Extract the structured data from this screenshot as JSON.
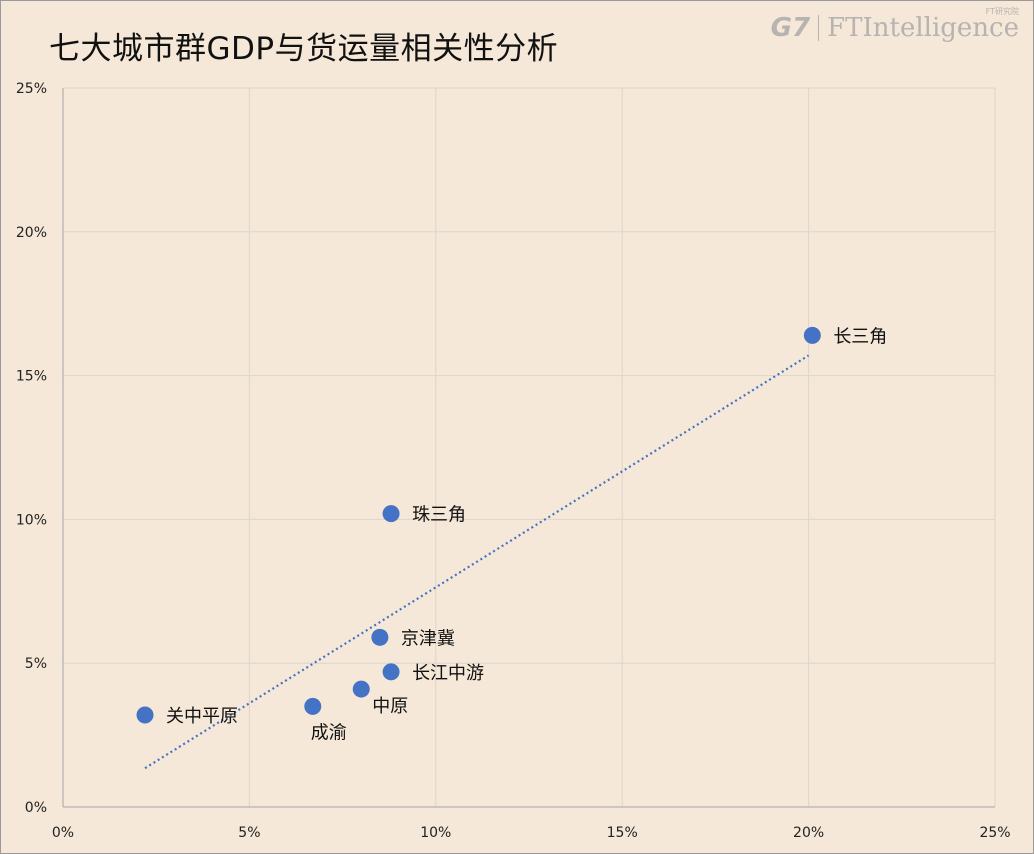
{
  "header": {
    "title": "七大城市群GDP与货运量相关性分析",
    "logo_g7": "G7",
    "logo_fti": "FTIntelligence",
    "logo_sub": "FT研究院"
  },
  "chart_data": {
    "type": "scatter",
    "title": "七大城市群GDP与货运量相关性分析",
    "xlabel": "",
    "ylabel": "",
    "xlim": [
      0,
      25
    ],
    "ylim": [
      0,
      25
    ],
    "x_ticks": [
      "0%",
      "5%",
      "10%",
      "15%",
      "20%",
      "25%"
    ],
    "y_ticks": [
      "0%",
      "5%",
      "10%",
      "15%",
      "20%",
      "25%"
    ],
    "grid": true,
    "points": [
      {
        "label": "长三角",
        "x": 20.1,
        "y": 16.4
      },
      {
        "label": "珠三角",
        "x": 8.8,
        "y": 10.2
      },
      {
        "label": "京津冀",
        "x": 8.5,
        "y": 5.9
      },
      {
        "label": "长江中游",
        "x": 8.8,
        "y": 4.7
      },
      {
        "label": "中原",
        "x": 8.0,
        "y": 4.1
      },
      {
        "label": "成渝",
        "x": 6.7,
        "y": 3.5
      },
      {
        "label": "关中平原",
        "x": 2.2,
        "y": 3.2
      }
    ],
    "trendline": {
      "style": "dotted",
      "x_start": 2.2,
      "y_start": 1.35,
      "x_end": 20.0,
      "y_end": 15.7
    },
    "colors": {
      "point": "#4472c4",
      "trendline": "#4472c4",
      "grid": "#dcd5cd",
      "axis": "#a6a6a6"
    }
  }
}
